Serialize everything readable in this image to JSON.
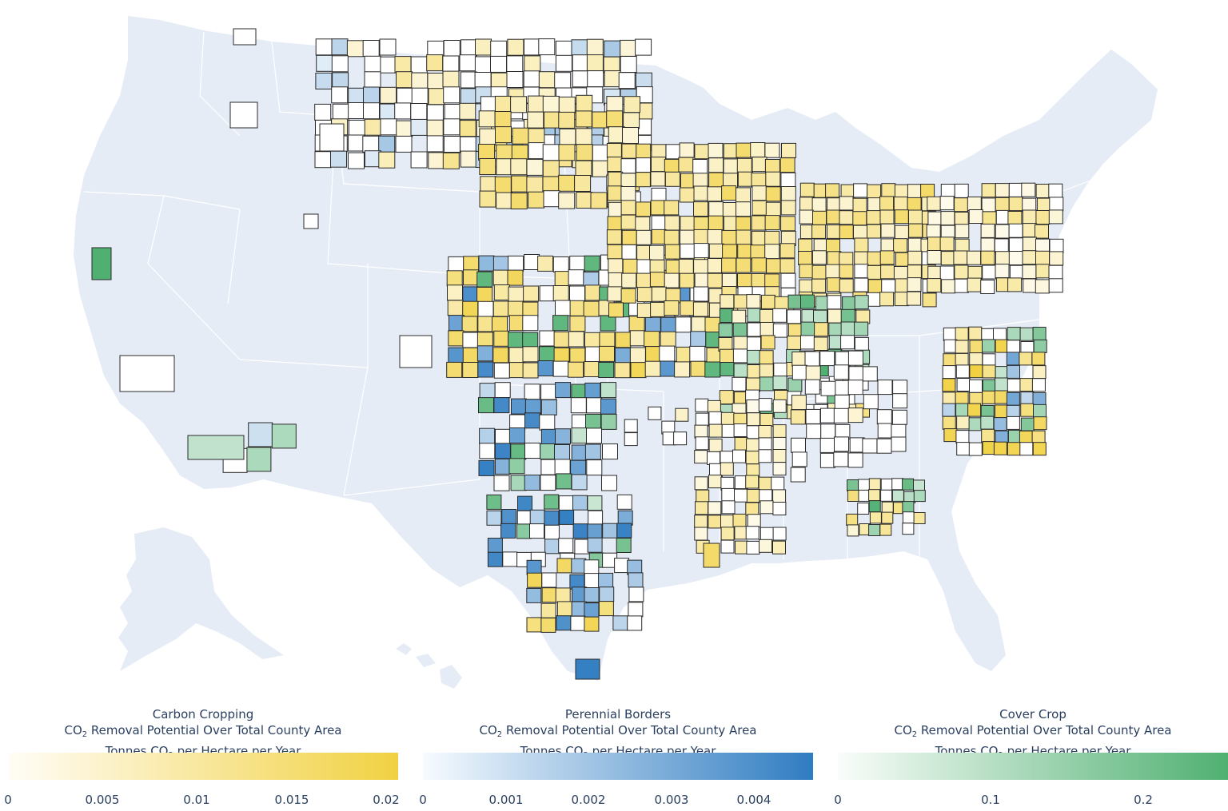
{
  "map": {
    "colors": {
      "background_land": "#e5ecf6",
      "state_border": "#ffffff",
      "county_border": "#2a2a2a",
      "neutral_county": "#ffffff",
      "carbon_cropping": "#f1d142",
      "perennial_borders": "#3580c3",
      "cover_crop": "#4fb071"
    }
  },
  "legends": [
    {
      "name": "Carbon Cropping",
      "line_pre": "CO",
      "line_sub": "2",
      "line_post": " Removal Potential Over Total County Area",
      "unit_pre": "Tonnes CO",
      "unit_sub": "2",
      "unit_post": " per Hectare per Year",
      "color_low": "#fffdf7",
      "color_high": "#f1d142",
      "ticks": [
        "0",
        "0.005",
        "0.01",
        "0.015",
        "0.02"
      ]
    },
    {
      "name": "Perennial Borders",
      "line_pre": "CO",
      "line_sub": "2",
      "line_post": " Removal Potential Over Total County Area",
      "unit_pre": "Tonnes CO",
      "unit_sub": "2",
      "unit_post": " per Hectare per Year",
      "color_low": "#f7fbff",
      "color_high": "#2f7cc1",
      "ticks": [
        "0",
        "0.001",
        "0.002",
        "0.003",
        "0.004"
      ]
    },
    {
      "name": "Cover Crop",
      "line_pre": "CO",
      "line_sub": "2",
      "line_post": " Removal Potential Over Total County Area",
      "unit_pre": "Tonnes CO",
      "unit_sub": "2",
      "unit_post": " per Hectare per Year",
      "color_low": "#fafdfa",
      "color_high": "#4fb071",
      "ticks": [
        "0",
        "0.1",
        "0.2"
      ]
    }
  ]
}
